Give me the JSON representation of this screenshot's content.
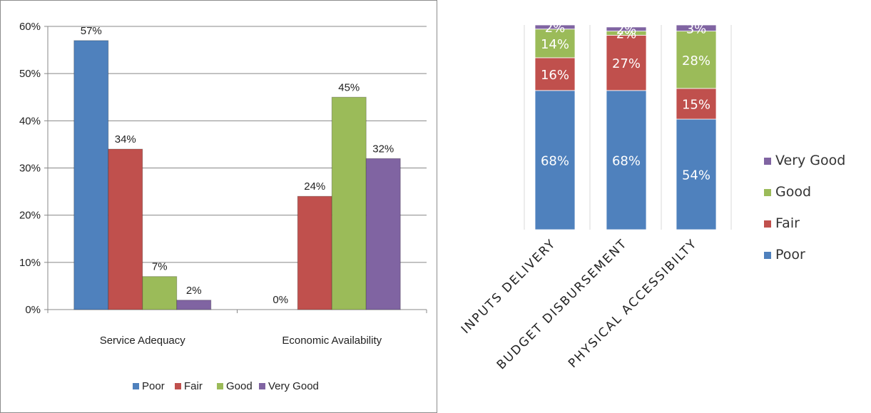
{
  "chart_data": [
    {
      "type": "bar",
      "categories": [
        "Service Adequacy",
        "Economic Availability"
      ],
      "series": [
        {
          "name": "Poor",
          "values": [
            57,
            0
          ],
          "labels": [
            "57%",
            "0%"
          ],
          "color": "#4f81bd"
        },
        {
          "name": "Fair",
          "values": [
            34,
            24
          ],
          "labels": [
            "34%",
            "24%"
          ],
          "color": "#c0504d"
        },
        {
          "name": "Good",
          "values": [
            7,
            45
          ],
          "labels": [
            "7%",
            "45%"
          ],
          "color": "#9bbb59"
        },
        {
          "name": "Very Good",
          "values": [
            2,
            32
          ],
          "labels": [
            "2%",
            "32%"
          ],
          "color": "#8064a2"
        }
      ],
      "ylim": [
        0,
        60
      ],
      "yticks": [
        0,
        10,
        20,
        30,
        40,
        50,
        60
      ],
      "ytick_labels": [
        "0%",
        "10%",
        "20%",
        "30%",
        "40%",
        "50%",
        "60%"
      ],
      "gridlines": true,
      "legend": "bottom"
    },
    {
      "type": "bar",
      "stacked": true,
      "categories": [
        "INPUTS DELIVERY",
        "BUDGET DISBURSEMENT",
        "PHYSICAL ACCESSIBILTY"
      ],
      "series": [
        {
          "name": "Poor",
          "values": [
            68,
            68,
            54
          ],
          "labels": [
            "68%",
            "68%",
            "54%"
          ],
          "color": "#4f81bd"
        },
        {
          "name": "Fair",
          "values": [
            16,
            27,
            15
          ],
          "labels": [
            "16%",
            "27%",
            "15%"
          ],
          "color": "#c0504d"
        },
        {
          "name": "Good",
          "values": [
            14,
            2,
            28
          ],
          "labels": [
            "14%",
            "2%",
            "28%"
          ],
          "color": "#9bbb59"
        },
        {
          "name": "Very Good",
          "values": [
            2,
            2,
            3
          ],
          "labels": [
            "2%",
            "2%",
            "3%"
          ],
          "color": "#8064a2"
        }
      ],
      "legend": "right",
      "gridlines": true
    }
  ]
}
